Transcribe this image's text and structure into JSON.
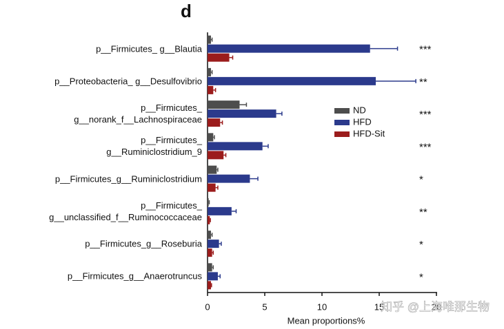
{
  "chart_data": {
    "type": "hbar",
    "panel_label": "d",
    "xlabel": "Mean proportions%",
    "categories": [
      "p__Firmicutes_ g__Blautia",
      "p__Proteobacteria_ g__Desulfovibrio",
      "p__Firmicutes_\ng__norank_f__Lachnospiraceae",
      "p__Firmicutes_\ng__Ruminiclostridium_9",
      "p__Firmicutes_g__Ruminiclostridium",
      "p__Firmicutes_\ng__unclassified_f__Ruminococcaceae",
      "p__Firmicutes_g__Roseburia",
      "p__Firmicutes_g__Anaerotruncus"
    ],
    "series": [
      {
        "name": "ND",
        "color": "#4d4d4d",
        "values": [
          0.3,
          0.3,
          2.8,
          0.5,
          0.8,
          0.1,
          0.3,
          0.4
        ],
        "errors": [
          0.1,
          0.1,
          0.6,
          0.1,
          0.1,
          0.05,
          0.1,
          0.1
        ]
      },
      {
        "name": "HFD",
        "color": "#2b3a8c",
        "values": [
          14.2,
          14.7,
          6.0,
          4.8,
          3.7,
          2.1,
          1.0,
          0.9
        ],
        "errors": [
          2.4,
          3.5,
          0.5,
          0.5,
          0.7,
          0.4,
          0.2,
          0.2
        ]
      },
      {
        "name": "HFD-Sit",
        "color": "#9b1c1c",
        "values": [
          1.9,
          0.5,
          1.1,
          1.4,
          0.7,
          0.2,
          0.4,
          0.3
        ],
        "errors": [
          0.3,
          0.2,
          0.2,
          0.2,
          0.2,
          0.05,
          0.1,
          0.05
        ]
      }
    ],
    "annotations": [
      "***",
      "**",
      "***",
      "***",
      "*",
      "**",
      "*",
      "*"
    ],
    "xlim": [
      0,
      20
    ],
    "xticks": [
      0,
      5,
      10,
      15,
      20
    ],
    "legend": "center-right",
    "watermark": "知乎 @上海唯那生物"
  }
}
